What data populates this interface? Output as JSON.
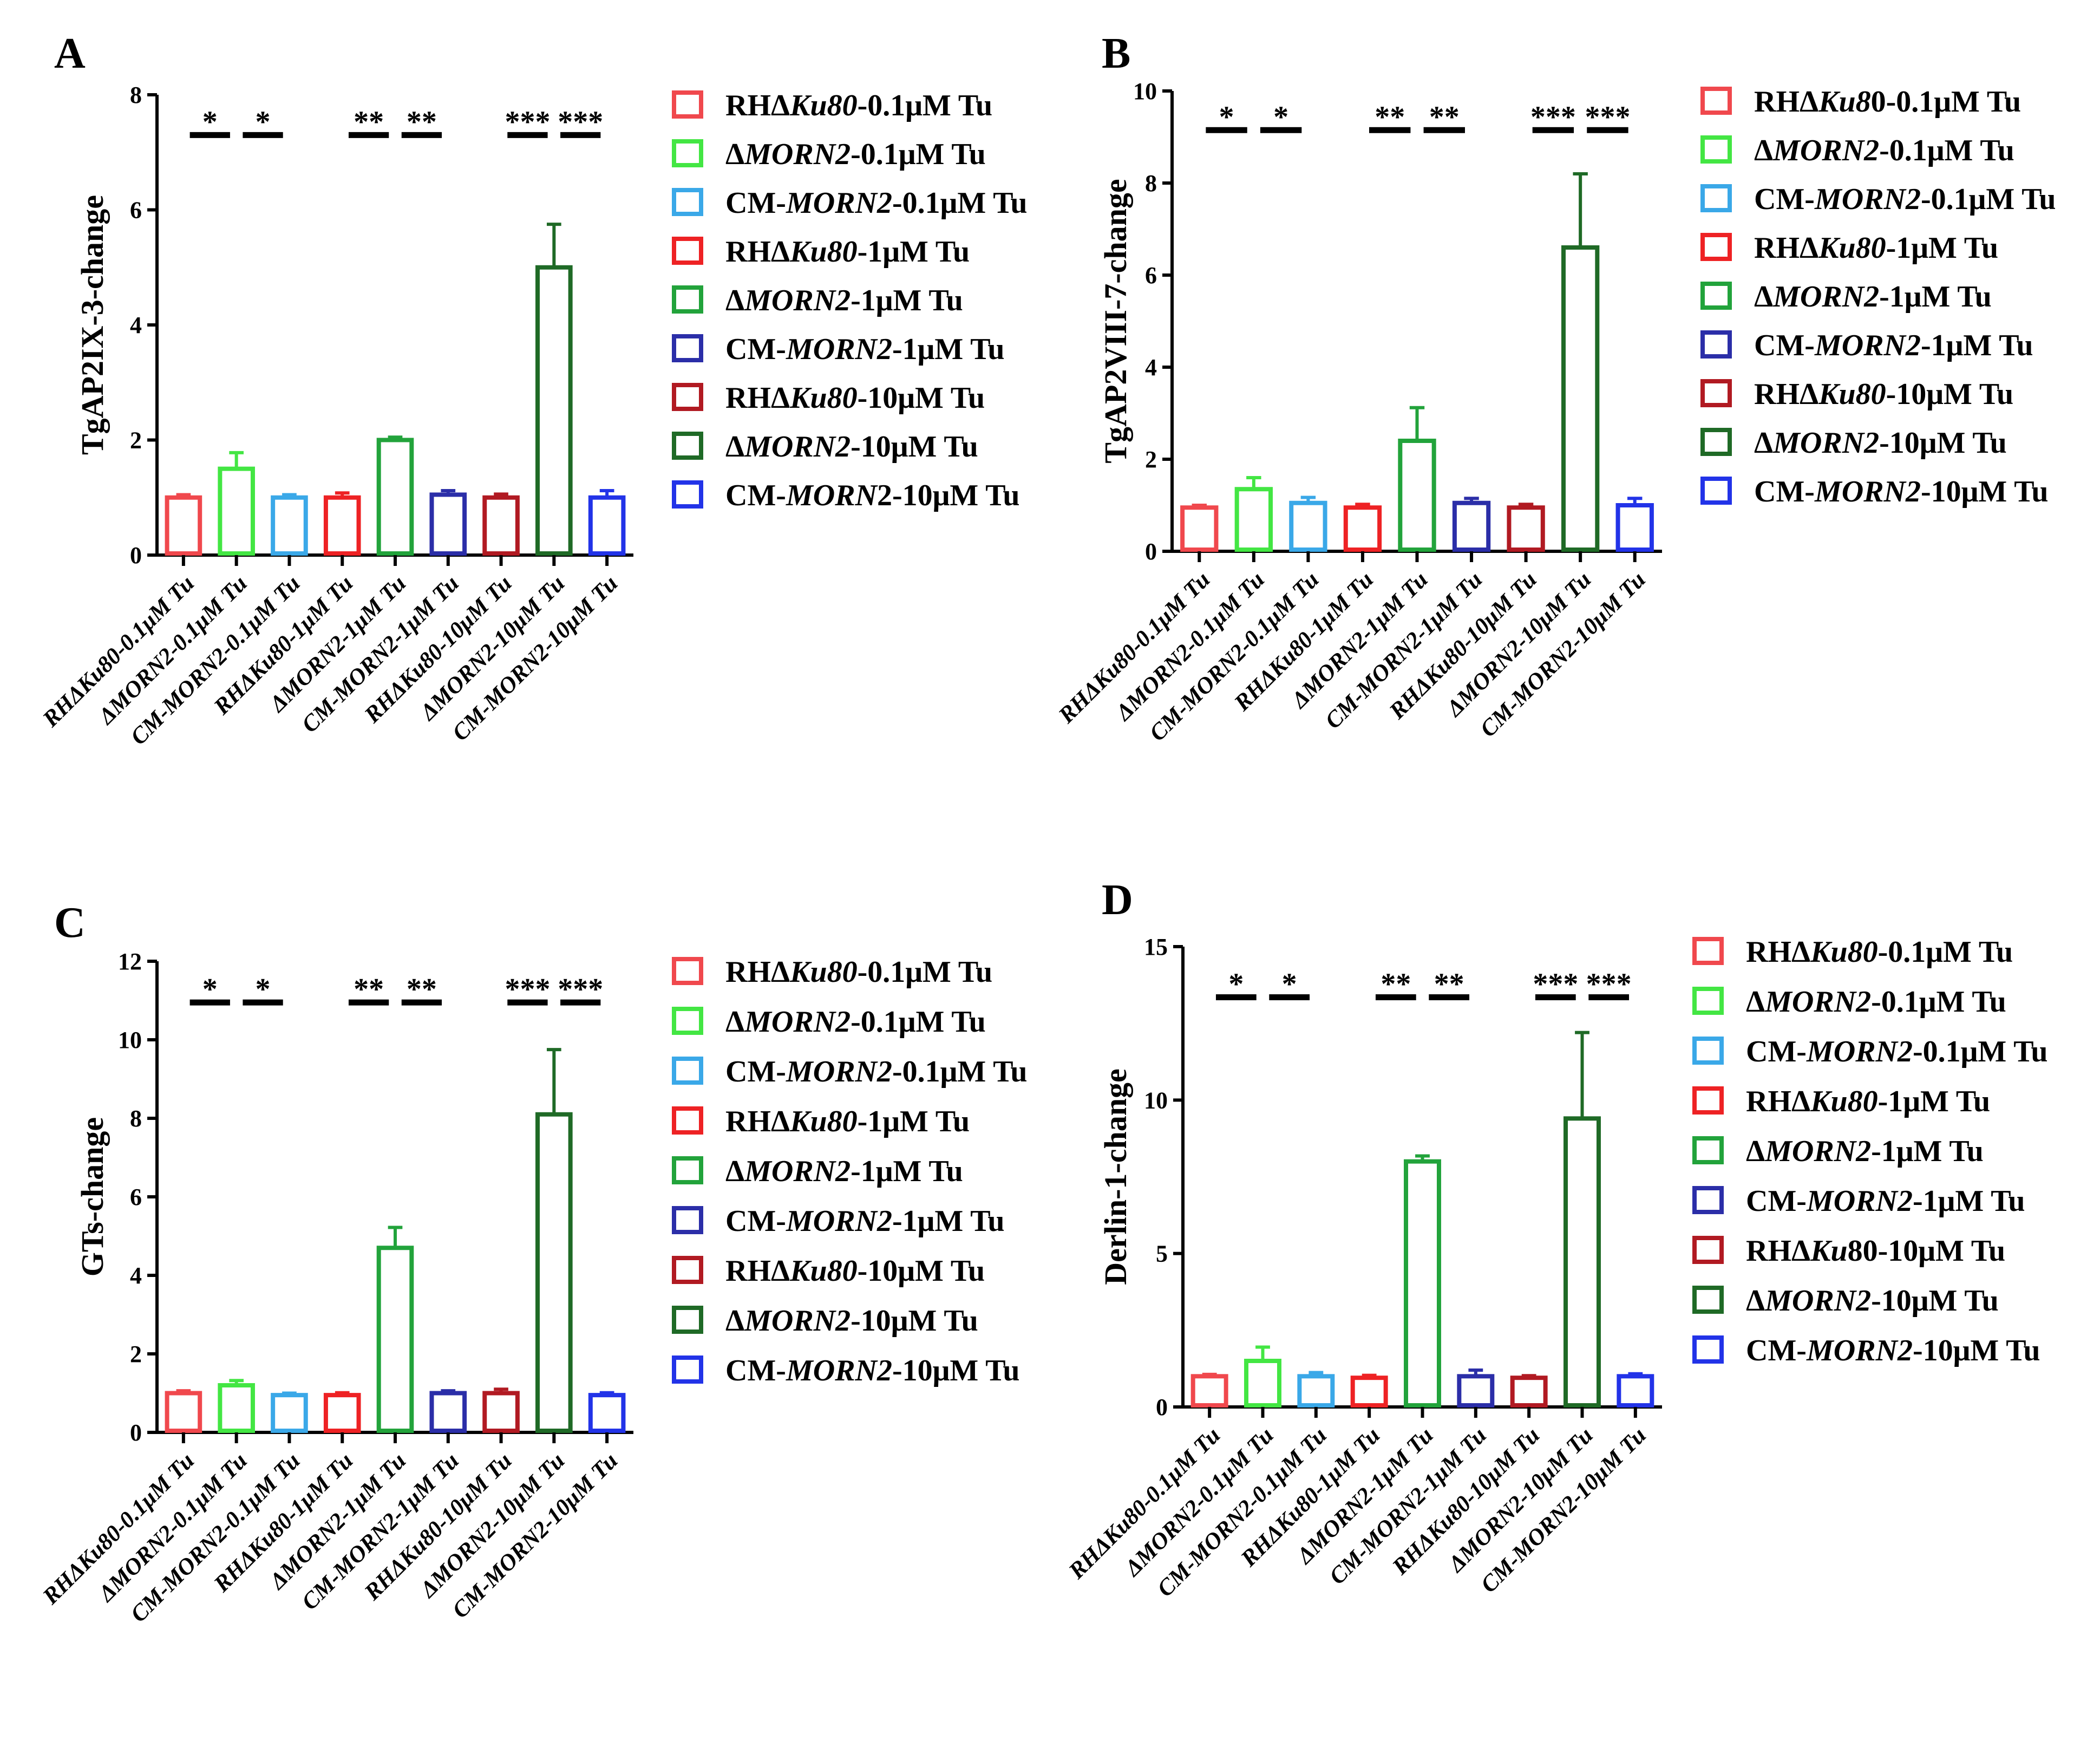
{
  "chart_data": [
    {
      "type": "bar",
      "panel": "A",
      "ylabel": "TgAP2IX-3-change",
      "ylim": [
        0,
        8
      ],
      "yticks": [
        "0",
        "2",
        "4",
        "6",
        "8"
      ],
      "categories": [
        "RHΔKu80-0.1μM Tu",
        "ΔMORN2-0.1μM Tu",
        "CM-MORN2-0.1μM Tu",
        "RHΔKu80-1μM Tu",
        "ΔMORN2-1μM Tu",
        "CM-MORN2-1μM Tu",
        "RHΔKu80-10μM Tu",
        "ΔMORN2-10μM Tu",
        "CM-MORN2-10μM Tu"
      ],
      "values": [
        1.0,
        1.5,
        1.0,
        1.0,
        2.0,
        1.05,
        1.0,
        5.0,
        1.0
      ],
      "errors": [
        0.05,
        0.28,
        0.05,
        0.08,
        0.05,
        0.07,
        0.06,
        0.75,
        0.12
      ],
      "colors": [
        "#f0484d",
        "#43e643",
        "#3aa8e8",
        "#ee2224",
        "#22a33b",
        "#2b2ea8",
        "#b11a22",
        "#1f6a26",
        "#2233e8"
      ],
      "significance": [
        {
          "from": 0,
          "to": 1,
          "label": "*"
        },
        {
          "from": 1,
          "to": 2,
          "label": "*"
        },
        {
          "from": 3,
          "to": 4,
          "label": "**"
        },
        {
          "from": 4,
          "to": 5,
          "label": "**"
        },
        {
          "from": 6,
          "to": 7,
          "label": "***"
        },
        {
          "from": 7,
          "to": 8,
          "label": "***"
        }
      ],
      "sig_y": 7.3,
      "legend": [
        [
          "RHΔ",
          "Ku80",
          "-0.1μM Tu"
        ],
        [
          "Δ",
          "MORN2",
          "-0.1μM Tu"
        ],
        [
          "CM-",
          "MORN2",
          "-0.1μM Tu"
        ],
        [
          "RHΔ",
          "Ku80",
          "-1μM Tu"
        ],
        [
          "Δ",
          "MORN2",
          "-1μM Tu"
        ],
        [
          "CM-",
          "MORN2",
          "-1μM Tu"
        ],
        [
          "RHΔ",
          "Ku80",
          "-10μM Tu"
        ],
        [
          "Δ",
          "MORN2",
          "-10μM Tu"
        ],
        [
          "CM-",
          "MORN",
          "2-10μM Tu"
        ]
      ]
    },
    {
      "type": "bar",
      "panel": "B",
      "ylabel": "TgAP2VIII-7-change",
      "ylim": [
        0,
        10
      ],
      "yticks": [
        "0",
        "2",
        "4",
        "6",
        "8",
        "10"
      ],
      "categories": [
        "RHΔKu80-0.1μM Tu",
        "ΔMORN2-0.1μM Tu",
        "CM-MORN2-0.1μM Tu",
        "RHΔKu80-1μM Tu",
        "ΔMORN2-1μM Tu",
        "CM-MORN2-1μM Tu",
        "RHΔKu80-10μM Tu",
        "ΔMORN2-10μM Tu",
        "CM-MORN2-10μM Tu"
      ],
      "values": [
        0.95,
        1.35,
        1.05,
        0.95,
        2.4,
        1.05,
        0.95,
        6.6,
        1.0
      ],
      "errors": [
        0.05,
        0.25,
        0.12,
        0.07,
        0.72,
        0.1,
        0.07,
        1.6,
        0.15
      ],
      "colors": [
        "#f0484d",
        "#43e643",
        "#3aa8e8",
        "#ee2224",
        "#22a33b",
        "#2b2ea8",
        "#b11a22",
        "#1f6a26",
        "#2233e8"
      ],
      "significance": [
        {
          "from": 0,
          "to": 1,
          "label": "*"
        },
        {
          "from": 1,
          "to": 2,
          "label": "*"
        },
        {
          "from": 3,
          "to": 4,
          "label": "**"
        },
        {
          "from": 4,
          "to": 5,
          "label": "**"
        },
        {
          "from": 6,
          "to": 7,
          "label": "***"
        },
        {
          "from": 7,
          "to": 8,
          "label": "***"
        }
      ],
      "sig_y": 9.15,
      "legend": [
        [
          "RHΔ",
          "Ku8",
          "0-0.1μM Tu"
        ],
        [
          "Δ",
          "MORN2",
          "-0.1μM Tu"
        ],
        [
          "CM-",
          "MORN2",
          "-0.1μM Tu"
        ],
        [
          "RHΔ",
          "Ku80",
          "-1μM Tu"
        ],
        [
          "Δ",
          "MORN2",
          "-1μM Tu"
        ],
        [
          "CM-",
          "MORN2",
          "-1μM Tu"
        ],
        [
          "RHΔ",
          "Ku80",
          "-10μM Tu"
        ],
        [
          "Δ",
          "MORN2",
          "-10μM Tu"
        ],
        [
          "CM-",
          "MORN2",
          "-10μM Tu"
        ]
      ]
    },
    {
      "type": "bar",
      "panel": "C",
      "ylabel": "GTs-change",
      "ylim": [
        0,
        12
      ],
      "yticks": [
        "0",
        "2",
        "4",
        "6",
        "8",
        "10",
        "12"
      ],
      "categories": [
        "RHΔKu80-0.1μM Tu",
        "ΔMORN2-0.1μM Tu",
        "CM-MORN2-0.1μM Tu",
        "RHΔKu80-1μM Tu",
        "ΔMORN2-1μM Tu",
        "CM-MORN2-1μM Tu",
        "RHΔKu80-10μM Tu",
        "ΔMORN2-10μM Tu",
        "CM-MORN2-10μM Tu"
      ],
      "values": [
        1.0,
        1.2,
        0.95,
        0.95,
        4.7,
        1.0,
        1.0,
        8.1,
        0.95
      ],
      "errors": [
        0.06,
        0.12,
        0.05,
        0.06,
        0.52,
        0.06,
        0.1,
        1.65,
        0.06
      ],
      "colors": [
        "#f0484d",
        "#43e643",
        "#3aa8e8",
        "#ee2224",
        "#22a33b",
        "#2b2ea8",
        "#b11a22",
        "#1f6a26",
        "#2233e8"
      ],
      "significance": [
        {
          "from": 0,
          "to": 1,
          "label": "*"
        },
        {
          "from": 1,
          "to": 2,
          "label": "*"
        },
        {
          "from": 3,
          "to": 4,
          "label": "**"
        },
        {
          "from": 4,
          "to": 5,
          "label": "**"
        },
        {
          "from": 6,
          "to": 7,
          "label": "***"
        },
        {
          "from": 7,
          "to": 8,
          "label": "***"
        }
      ],
      "sig_y": 10.95,
      "legend": [
        [
          "RHΔ",
          "Ku80",
          "-0.1μM Tu"
        ],
        [
          "Δ",
          "MORN2",
          "-0.1μM Tu"
        ],
        [
          "CM-",
          "MORN2",
          "-0.1μM Tu"
        ],
        [
          "RHΔ",
          "Ku80",
          "-1μM Tu"
        ],
        [
          "Δ",
          "MORN2",
          "-1μM Tu"
        ],
        [
          "CM-",
          "MORN2",
          "-1μM Tu"
        ],
        [
          "RHΔ",
          "Ku80",
          "-10μM Tu"
        ],
        [
          "Δ",
          "MORN2",
          "-10μM Tu"
        ],
        [
          "CM-",
          "MORN2",
          "-10μM Tu"
        ]
      ]
    },
    {
      "type": "bar",
      "panel": "D",
      "ylabel": "Derlin-1-change",
      "ylim": [
        0,
        15
      ],
      "yticks": [
        "0",
        "5",
        "10",
        "15"
      ],
      "categories": [
        "RHΔKu80-0.1μM Tu",
        "ΔMORN2-0.1μM Tu",
        "CM-MORN2-0.1μM Tu",
        "RHΔKu80-1μM Tu",
        "ΔMORN2-1μM Tu",
        "CM-MORN2-1μM Tu",
        "RHΔKu80-10μM Tu",
        "ΔMORN2-10μM Tu",
        "CM-MORN2-10μM Tu"
      ],
      "values": [
        1.0,
        1.5,
        1.0,
        0.95,
        8.0,
        1.0,
        0.95,
        9.4,
        1.0
      ],
      "errors": [
        0.06,
        0.45,
        0.12,
        0.08,
        0.18,
        0.2,
        0.07,
        2.8,
        0.08
      ],
      "colors": [
        "#f0484d",
        "#43e643",
        "#3aa8e8",
        "#ee2224",
        "#22a33b",
        "#2b2ea8",
        "#b11a22",
        "#1f6a26",
        "#2233e8"
      ],
      "significance": [
        {
          "from": 0,
          "to": 1,
          "label": "*"
        },
        {
          "from": 1,
          "to": 2,
          "label": "*"
        },
        {
          "from": 3,
          "to": 4,
          "label": "**"
        },
        {
          "from": 4,
          "to": 5,
          "label": "**"
        },
        {
          "from": 6,
          "to": 7,
          "label": "***"
        },
        {
          "from": 7,
          "to": 8,
          "label": "***"
        }
      ],
      "sig_y": 13.35,
      "legend": [
        [
          "RHΔ",
          "Ku80",
          "-0.1μM Tu"
        ],
        [
          "Δ",
          "MORN2",
          "-0.1μM Tu"
        ],
        [
          "CM-",
          "MORN2",
          "-0.1μM Tu"
        ],
        [
          "RHΔ",
          "Ku80",
          "-1μM Tu"
        ],
        [
          "Δ",
          "MORN2",
          "-1μM Tu"
        ],
        [
          "CM-",
          "MORN2",
          "-1μM Tu"
        ],
        [
          "RHΔ",
          "Ku",
          "80-10μM Tu"
        ],
        [
          "Δ",
          "MORN2",
          "-10μM Tu"
        ],
        [
          "CM-",
          "MORN2",
          "-10μM Tu"
        ]
      ]
    }
  ]
}
